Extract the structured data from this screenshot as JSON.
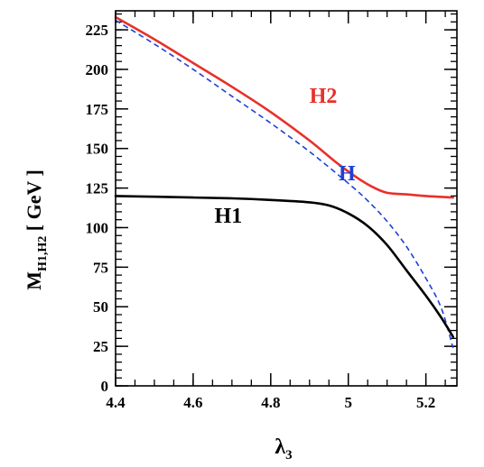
{
  "chart_data": {
    "type": "line",
    "title": "",
    "xlabel": {
      "base": "λ",
      "sub": "3"
    },
    "ylabel": {
      "base": "M",
      "sub": "H1,H2",
      "unit": " [ GeV ]"
    },
    "xlim": [
      4.4,
      5.28
    ],
    "ylim": [
      0,
      237
    ],
    "x_ticks": [
      {
        "value": 4.4,
        "label": "4.4"
      },
      {
        "value": 4.6,
        "label": "4.6"
      },
      {
        "value": 4.8,
        "label": "4.8"
      },
      {
        "value": 5.0,
        "label": "5"
      },
      {
        "value": 5.2,
        "label": "5.2"
      }
    ],
    "y_ticks": [
      {
        "value": 0,
        "label": "0"
      },
      {
        "value": 25,
        "label": "25"
      },
      {
        "value": 50,
        "label": "50"
      },
      {
        "value": 75,
        "label": "75"
      },
      {
        "value": 100,
        "label": "100"
      },
      {
        "value": 125,
        "label": "125"
      },
      {
        "value": 150,
        "label": "150"
      },
      {
        "value": 175,
        "label": "175"
      },
      {
        "value": 200,
        "label": "200"
      },
      {
        "value": 225,
        "label": "225"
      }
    ],
    "x_minor_step": 0.05,
    "y_minor_step": 5,
    "series": [
      {
        "name": "H2",
        "color": "#e8302a",
        "style": "solid",
        "label_at": [
          4.9,
          179
        ],
        "points": [
          [
            4.4,
            233
          ],
          [
            4.5,
            219
          ],
          [
            4.6,
            204
          ],
          [
            4.7,
            189
          ],
          [
            4.8,
            173
          ],
          [
            4.9,
            155
          ],
          [
            4.97,
            141
          ],
          [
            5.02,
            132
          ],
          [
            5.06,
            126
          ],
          [
            5.1,
            122
          ],
          [
            5.15,
            121
          ],
          [
            5.2,
            120
          ],
          [
            5.27,
            119
          ]
        ]
      },
      {
        "name": "H",
        "color": "#1f3fd6",
        "style": "dashed",
        "label_at": [
          4.975,
          130
        ],
        "points": [
          [
            4.4,
            231
          ],
          [
            4.5,
            216
          ],
          [
            4.6,
            200
          ],
          [
            4.7,
            183
          ],
          [
            4.8,
            166
          ],
          [
            4.9,
            148
          ],
          [
            5.0,
            128
          ],
          [
            5.05,
            117
          ],
          [
            5.1,
            104
          ],
          [
            5.15,
            88
          ],
          [
            5.2,
            68
          ],
          [
            5.24,
            49
          ],
          [
            5.27,
            24
          ]
        ]
      },
      {
        "name": "H1",
        "color": "#000000",
        "style": "solid",
        "label_at": [
          4.655,
          103
        ],
        "points": [
          [
            4.4,
            120
          ],
          [
            4.5,
            119.5
          ],
          [
            4.6,
            119
          ],
          [
            4.7,
            118.5
          ],
          [
            4.8,
            117.5
          ],
          [
            4.9,
            116
          ],
          [
            4.95,
            114
          ],
          [
            5.0,
            109
          ],
          [
            5.05,
            101
          ],
          [
            5.1,
            89
          ],
          [
            5.15,
            73
          ],
          [
            5.2,
            57
          ],
          [
            5.24,
            43
          ],
          [
            5.27,
            31
          ]
        ]
      }
    ],
    "grid": false,
    "legend": "none"
  }
}
